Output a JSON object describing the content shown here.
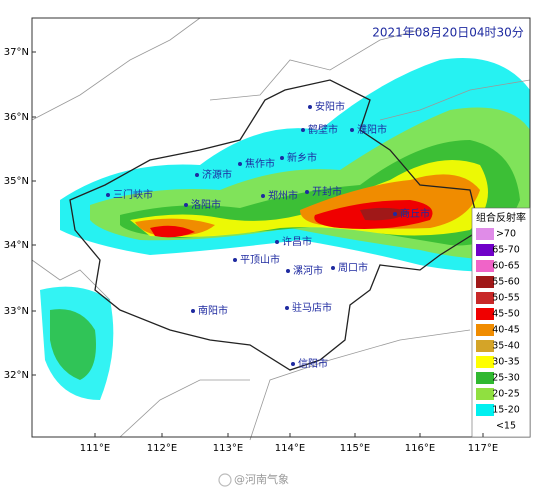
{
  "timestamp": "2021年08月20日04时30分",
  "lat_labels": [
    "37°N",
    "36°N",
    "35°N",
    "34°N",
    "33°N",
    "32°N"
  ],
  "lon_labels": [
    "111°E",
    "112°E",
    "113°E",
    "114°E",
    "115°E",
    "116°E",
    "117°E"
  ],
  "cities": [
    "安阳市",
    "鹤壁市",
    "濮阳市",
    "新乡市",
    "焦作市",
    "济源市",
    "三门峡市",
    "洛阳市",
    "郑州市",
    "开封市",
    "商丘市",
    "许昌市",
    "平顶山市",
    "漯河市",
    "周口市",
    "南阳市",
    "驻马店市",
    "信阳市"
  ],
  "legend": {
    "title": "组合反射率",
    "items": [
      {
        "label": ">70",
        "color": "#e08ce8"
      },
      {
        "label": "65-70",
        "color": "#7000c8"
      },
      {
        "label": "60-65",
        "color": "#f064c8"
      },
      {
        "label": "55-60",
        "color": "#a01818"
      },
      {
        "label": "50-55",
        "color": "#c82828"
      },
      {
        "label": "45-50",
        "color": "#f00000"
      },
      {
        "label": "40-45",
        "color": "#f08c00"
      },
      {
        "label": "35-40",
        "color": "#d4a428"
      },
      {
        "label": "30-35",
        "color": "#ffff00"
      },
      {
        "label": "25-30",
        "color": "#30b830"
      },
      {
        "label": "20-25",
        "color": "#90e040"
      },
      {
        "label": "15-20",
        "color": "#00f0f0"
      },
      {
        "label": "<15"
      }
    ]
  },
  "watermark": "@河南气象"
}
